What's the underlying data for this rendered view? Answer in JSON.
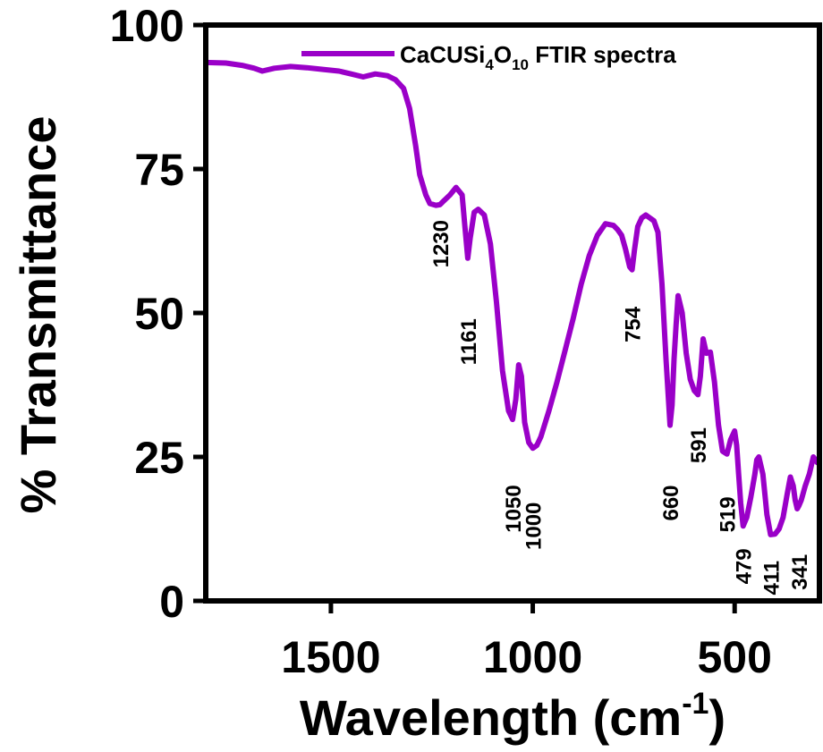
{
  "chart_data": {
    "type": "line",
    "title": "",
    "xlabel_main": "Wavelength (cm",
    "xlabel_sup": "-1",
    "xlabel_close": ")",
    "ylabel": "% Transmittance",
    "xlim": [
      1810,
      290
    ],
    "ylim": [
      0,
      100
    ],
    "x_ticks": [
      1500,
      1000,
      500
    ],
    "x_tick_labels": [
      "1500",
      "1000",
      "500"
    ],
    "y_ticks": [
      0,
      25,
      50,
      75,
      100
    ],
    "y_tick_labels": [
      "0",
      "25",
      "50",
      "75",
      "100"
    ],
    "grid": false,
    "legend_position": "top-right",
    "line_color": "#9A00C8",
    "series": [
      {
        "name_main": "CaCUSi",
        "name_sub1": "4",
        "name_mid": "O",
        "name_sub2": "10",
        "name_tail": " FTIR spectra",
        "x": [
          1810,
          1760,
          1720,
          1690,
          1670,
          1640,
          1600,
          1560,
          1520,
          1480,
          1450,
          1420,
          1390,
          1360,
          1340,
          1320,
          1305,
          1290,
          1280,
          1265,
          1255,
          1240,
          1230,
          1220,
          1205,
          1190,
          1175,
          1168,
          1161,
          1155,
          1145,
          1135,
          1120,
          1105,
          1090,
          1075,
          1060,
          1050,
          1042,
          1035,
          1028,
          1020,
          1010,
          1000,
          990,
          980,
          960,
          940,
          920,
          900,
          880,
          860,
          840,
          820,
          800,
          790,
          780,
          770,
          760,
          754,
          748,
          740,
          730,
          720,
          710,
          700,
          690,
          680,
          670,
          660,
          655,
          650,
          645,
          640,
          630,
          620,
          610,
          600,
          591,
          585,
          578,
          570,
          560,
          550,
          540,
          530,
          519,
          510,
          500,
          495,
          490,
          485,
          479,
          470,
          460,
          450,
          445,
          440,
          430,
          420,
          411,
          400,
          390,
          380,
          370,
          362,
          355,
          350,
          345,
          341,
          335,
          325,
          315,
          305,
          295
        ],
        "y": [
          93.5,
          93.4,
          93.0,
          92.5,
          92.0,
          92.5,
          92.8,
          92.6,
          92.3,
          92.0,
          91.5,
          91.0,
          91.5,
          91.2,
          90.5,
          89.0,
          85.5,
          79.0,
          74.0,
          70.5,
          69.0,
          68.7,
          68.8,
          69.5,
          70.5,
          71.8,
          70.5,
          65.0,
          59.5,
          63.0,
          67.5,
          68.0,
          67.0,
          62.0,
          52.0,
          40.0,
          33.0,
          31.5,
          35.0,
          41.0,
          39.0,
          31.0,
          27.5,
          26.5,
          27.0,
          28.5,
          33.0,
          38.0,
          43.5,
          49.0,
          55.0,
          60.0,
          63.5,
          65.5,
          65.2,
          64.5,
          63.5,
          61.0,
          58.0,
          57.5,
          61.0,
          65.0,
          66.5,
          67.0,
          66.5,
          66.0,
          64.0,
          55.0,
          42.0,
          30.5,
          34.0,
          42.0,
          48.0,
          53.0,
          50.0,
          43.0,
          38.5,
          36.5,
          35.8,
          39.0,
          45.5,
          43.0,
          43.2,
          38.0,
          30.5,
          26.0,
          25.5,
          28.0,
          29.5,
          27.0,
          22.0,
          17.0,
          13.0,
          14.5,
          18.0,
          22.0,
          24.5,
          25.0,
          22.0,
          15.0,
          11.5,
          11.6,
          12.5,
          14.5,
          18.5,
          21.5,
          20.0,
          17.5,
          16.0,
          16.5,
          17.5,
          20.0,
          22.0,
          25.0,
          24.0
        ]
      }
    ],
    "annotations": [
      {
        "text": "1230",
        "x": 1230,
        "y": 62
      },
      {
        "text": "1161",
        "x": 1161,
        "y": 45
      },
      {
        "text": "1050",
        "x": 1050,
        "y": 16
      },
      {
        "text": "1000",
        "x": 1000,
        "y": 13
      },
      {
        "text": "754",
        "x": 754,
        "y": 48
      },
      {
        "text": "660",
        "x": 660,
        "y": 17
      },
      {
        "text": "591",
        "x": 591,
        "y": 27
      },
      {
        "text": "519",
        "x": 519,
        "y": 15
      },
      {
        "text": "479",
        "x": 479,
        "y": 6
      },
      {
        "text": "411",
        "x": 411,
        "y": 4
      },
      {
        "text": "341",
        "x": 341,
        "y": 5
      }
    ]
  }
}
